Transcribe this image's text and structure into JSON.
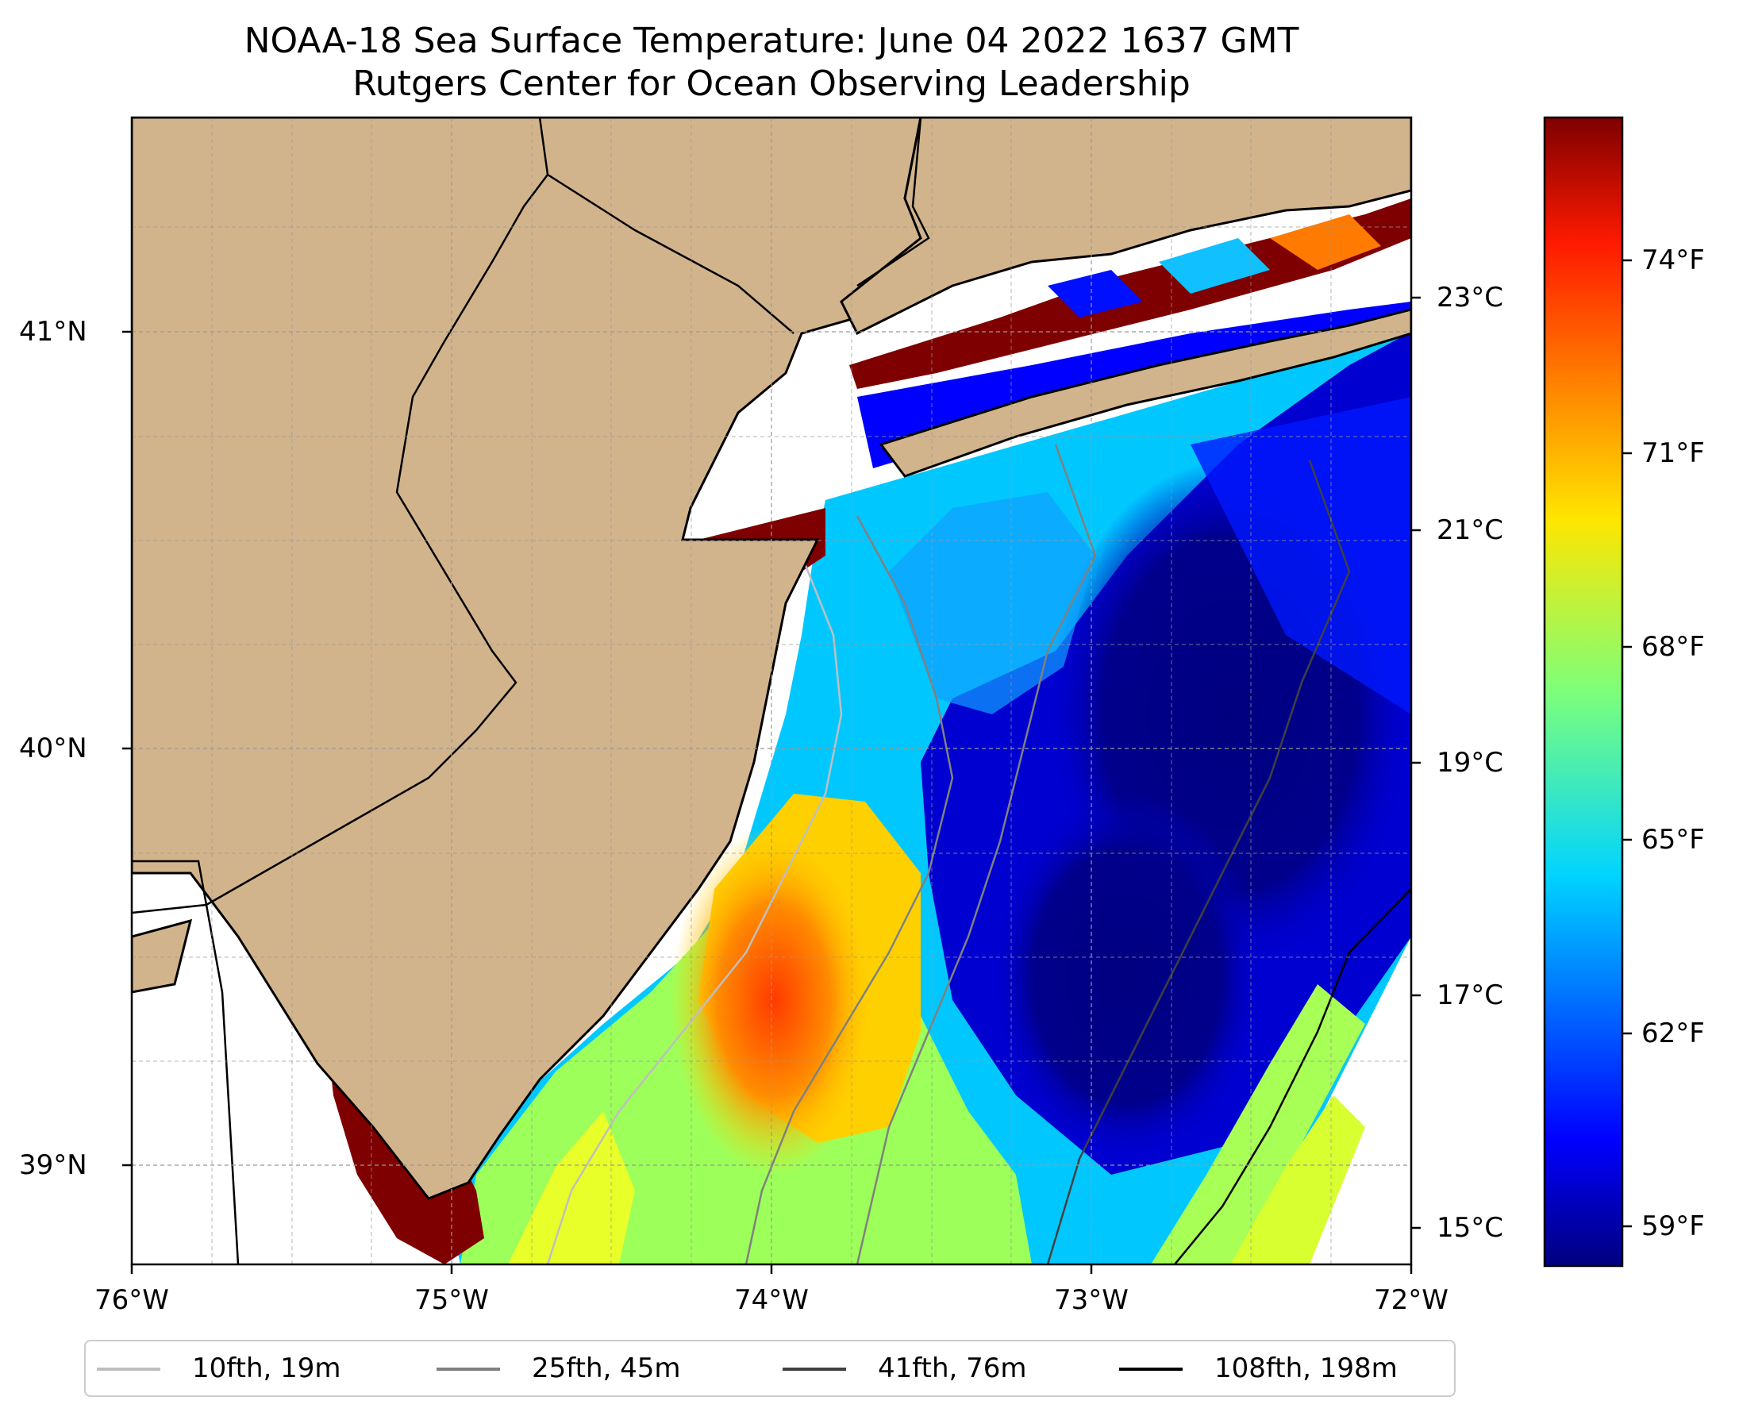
{
  "title": {
    "line1": "NOAA-18 Sea Surface Temperature: June 04 2022 1637 GMT",
    "line2": "Rutgers Center for Ocean Observing Leadership"
  },
  "map": {
    "land_color": "#d2b48c",
    "coast_color": "#000000",
    "grid": true,
    "lon_range": [
      -76,
      -72
    ],
    "lat_range": [
      38.75,
      41.5
    ],
    "lon_ticks": [
      {
        "value": -76,
        "label": "76°W"
      },
      {
        "value": -75,
        "label": "75°W"
      },
      {
        "value": -74,
        "label": "74°W"
      },
      {
        "value": -73,
        "label": "73°W"
      },
      {
        "value": -72,
        "label": "72°W"
      }
    ],
    "lat_ticks": [
      {
        "value": 41,
        "label": "41°N"
      },
      {
        "value": 40,
        "label": "40°N"
      },
      {
        "value": 39,
        "label": "39°N"
      }
    ]
  },
  "temperature_scale": {
    "colormap": "jet",
    "celsius_ticks": [
      {
        "value": 23,
        "label": "23°C"
      },
      {
        "value": 21,
        "label": "21°C"
      },
      {
        "value": 19,
        "label": "19°C"
      },
      {
        "value": 17,
        "label": "17°C"
      },
      {
        "value": 15,
        "label": "15°C"
      }
    ],
    "fahrenheit_ticks": [
      {
        "value": 74,
        "label": "74°F"
      },
      {
        "value": 71,
        "label": "71°F"
      },
      {
        "value": 68,
        "label": "68°F"
      },
      {
        "value": 65,
        "label": "65°F"
      },
      {
        "value": 62,
        "label": "62°F"
      },
      {
        "value": 59,
        "label": "59°F"
      }
    ]
  },
  "legend": {
    "placement": "bottom",
    "entries": [
      {
        "label": "10fth, 19m",
        "color": "#bfbfbf"
      },
      {
        "label": "25fth, 45m",
        "color": "#808080"
      },
      {
        "label": "41fth, 76m",
        "color": "#404040"
      },
      {
        "label": "108fth, 198m",
        "color": "#000000"
      }
    ]
  }
}
